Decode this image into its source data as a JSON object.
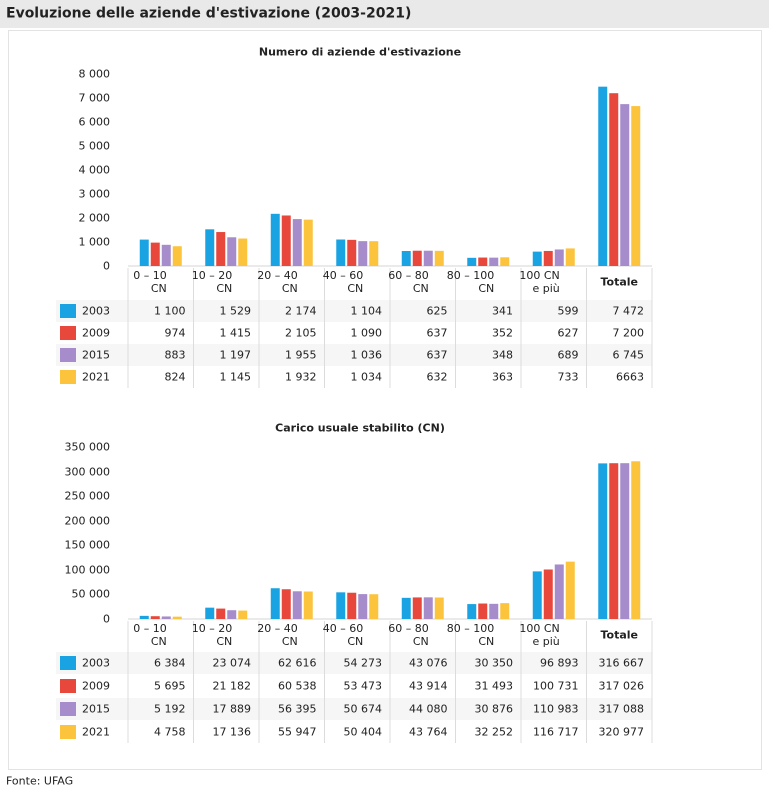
{
  "title": "Evoluzione delle aziende d'estivazione (2003-2021)",
  "source": "Fonte: UFAG",
  "chart_data": [
    {
      "type": "bar",
      "title": "Numero di aziende d'estivazione",
      "categories": [
        "0 – 10\nCN",
        "10 – 20\nCN",
        "20 – 40\nCN",
        "40 – 60\nCN",
        "60 – 80\nCN",
        "80 – 100\nCN",
        "100 CN\ne più",
        "Totale"
      ],
      "ylim": [
        0,
        8000
      ],
      "yticks": [
        0,
        {
          "value": 1000,
          "label": "1 000"
        },
        {
          "value": 2000,
          "label": "2 000"
        },
        {
          "value": 3000,
          "label": "3 000"
        },
        {
          "value": 4000,
          "label": "4 000"
        },
        {
          "value": 5000,
          "label": "5 000"
        },
        {
          "value": 6000,
          "label": "6 000"
        },
        {
          "value": 7000,
          "label": "7 000"
        },
        {
          "value": 8000,
          "label": "8 000"
        }
      ],
      "series": [
        {
          "name": "2003",
          "color": "#1aa3e2",
          "values": [
            1100,
            1529,
            2174,
            1104,
            625,
            341,
            599,
            7472
          ],
          "value_labels": [
            "1 100",
            "1 529",
            "2 174",
            "1 104",
            "625",
            "341",
            "599",
            "7 472"
          ]
        },
        {
          "name": "2009",
          "color": "#e8473b",
          "values": [
            974,
            1415,
            2105,
            1090,
            637,
            352,
            627,
            7200
          ],
          "value_labels": [
            "974",
            "1 415",
            "2 105",
            "1 090",
            "637",
            "352",
            "627",
            "7 200"
          ]
        },
        {
          "name": "2015",
          "color": "#a68ccb",
          "values": [
            883,
            1197,
            1955,
            1036,
            637,
            348,
            689,
            6745
          ],
          "value_labels": [
            "883",
            "1 197",
            "1 955",
            "1 036",
            "637",
            "348",
            "689",
            "6 745"
          ]
        },
        {
          "name": "2021",
          "color": "#fcc43c",
          "values": [
            824,
            1145,
            1932,
            1034,
            632,
            363,
            733,
            6663
          ],
          "value_labels": [
            "824",
            "1 145",
            "1 932",
            "1 034",
            "632",
            "363",
            "733",
            "6663"
          ]
        }
      ]
    },
    {
      "type": "bar",
      "title": "Carico usuale stabilito (CN)",
      "categories": [
        "0 – 10\nCN",
        "10 – 20\nCN",
        "20 – 40\nCN",
        "40 – 60\nCN",
        "60 – 80\nCN",
        "80 – 100\nCN",
        "100 CN\ne più",
        "Totale"
      ],
      "ylim": [
        0,
        350000
      ],
      "yticks": [
        0,
        {
          "value": 50000,
          "label": "50 000"
        },
        {
          "value": 100000,
          "label": "100 000"
        },
        {
          "value": 150000,
          "label": "150 000"
        },
        {
          "value": 200000,
          "label": "200 000"
        },
        {
          "value": 250000,
          "label": "250 000"
        },
        {
          "value": 300000,
          "label": "300 000"
        },
        {
          "value": 350000,
          "label": "350 000"
        }
      ],
      "series": [
        {
          "name": "2003",
          "color": "#1aa3e2",
          "values": [
            6384,
            23074,
            62616,
            54273,
            43076,
            30350,
            96893,
            316667
          ],
          "value_labels": [
            "6 384",
            "23 074",
            "62 616",
            "54 273",
            "43 076",
            "30 350",
            "96 893",
            "316 667"
          ]
        },
        {
          "name": "2009",
          "color": "#e8473b",
          "values": [
            5695,
            21182,
            60538,
            53473,
            43914,
            31493,
            100731,
            317026
          ],
          "value_labels": [
            "5 695",
            "21 182",
            "60 538",
            "53 473",
            "43 914",
            "31 493",
            "100 731",
            "317 026"
          ]
        },
        {
          "name": "2015",
          "color": "#a68ccb",
          "values": [
            5192,
            17889,
            56395,
            50674,
            44080,
            30876,
            110983,
            317088
          ],
          "value_labels": [
            "5 192",
            "17 889",
            "56 395",
            "50 674",
            "44 080",
            "30 876",
            "110 983",
            "317 088"
          ]
        },
        {
          "name": "2021",
          "color": "#fcc43c",
          "values": [
            4758,
            17136,
            55947,
            50404,
            43764,
            32252,
            116717,
            320977
          ],
          "value_labels": [
            "4 758",
            "17 136",
            "55 947",
            "50 404",
            "43 764",
            "32 252",
            "116 717",
            "320 977"
          ]
        }
      ]
    }
  ]
}
